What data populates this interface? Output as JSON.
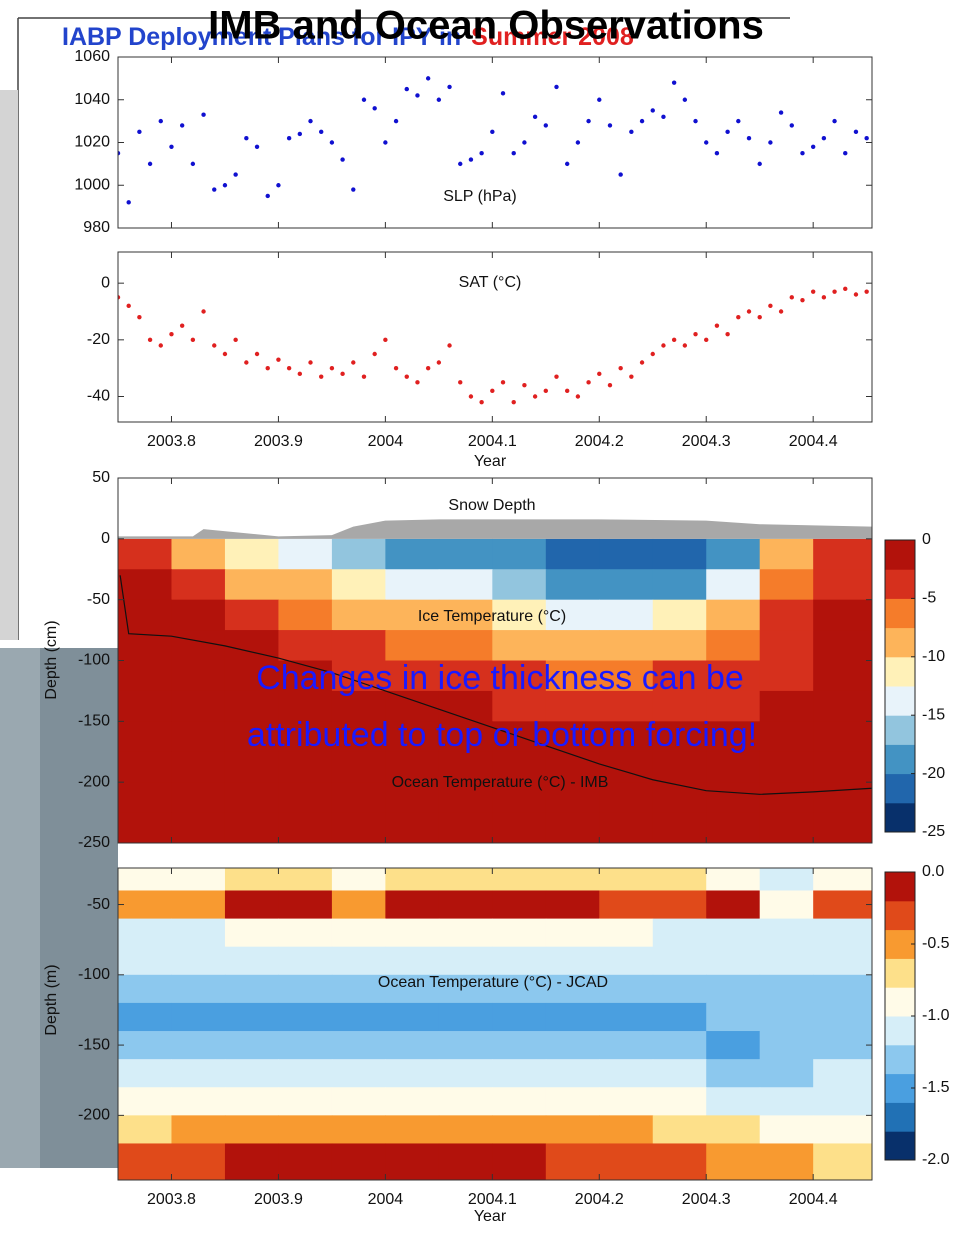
{
  "title": "IMB and Ocean Observations",
  "background_title": [
    "IABP Deployment Plans for IPY in",
    "Summer 2008"
  ],
  "overlay": [
    "Changes in ice thickness can be",
    "attributed to top or bottom forcing!"
  ],
  "chart_data": [
    {
      "type": "scatter",
      "annotations": [
        "SLP (hPa)"
      ],
      "color": "#1010d0",
      "x": [
        2003.75,
        2003.76,
        2003.77,
        2003.78,
        2003.79,
        2003.8,
        2003.81,
        2003.82,
        2003.83,
        2003.84,
        2003.85,
        2003.86,
        2003.87,
        2003.88,
        2003.89,
        2003.9,
        2003.91,
        2003.92,
        2003.93,
        2003.94,
        2003.95,
        2003.96,
        2003.97,
        2003.98,
        2003.99,
        2004.0,
        2004.01,
        2004.02,
        2004.03,
        2004.04,
        2004.05,
        2004.06,
        2004.07,
        2004.08,
        2004.09,
        2004.1,
        2004.11,
        2004.12,
        2004.13,
        2004.14,
        2004.15,
        2004.16,
        2004.17,
        2004.18,
        2004.19,
        2004.2,
        2004.21,
        2004.22,
        2004.23,
        2004.24,
        2004.25,
        2004.26,
        2004.27,
        2004.28,
        2004.29,
        2004.3,
        2004.31,
        2004.32,
        2004.33,
        2004.34,
        2004.35,
        2004.36,
        2004.37,
        2004.38,
        2004.39,
        2004.4,
        2004.41,
        2004.42,
        2004.43,
        2004.44,
        2004.45
      ],
      "values": [
        1015,
        992,
        1025,
        1010,
        1030,
        1018,
        1028,
        1010,
        1033,
        998,
        1000,
        1005,
        1022,
        1018,
        995,
        1000,
        1022,
        1024,
        1030,
        1025,
        1020,
        1012,
        998,
        1040,
        1036,
        1020,
        1030,
        1045,
        1042,
        1050,
        1040,
        1046,
        1010,
        1012,
        1015,
        1025,
        1043,
        1015,
        1020,
        1032,
        1028,
        1046,
        1010,
        1020,
        1030,
        1040,
        1028,
        1005,
        1025,
        1030,
        1035,
        1032,
        1048,
        1040,
        1030,
        1020,
        1015,
        1025,
        1030,
        1022,
        1010,
        1020,
        1034,
        1028,
        1015,
        1018,
        1022,
        1030,
        1015,
        1025,
        1022
      ],
      "xlim": [
        2003.75,
        2004.455
      ],
      "xticks": [
        2003.8,
        2003.9,
        2004,
        2004.1,
        2004.2,
        2004.3,
        2004.4
      ],
      "show_xtick_labels": false,
      "ylim": [
        980,
        1060
      ],
      "yticks": [
        980,
        1000,
        1020,
        1040,
        1060
      ]
    },
    {
      "type": "scatter",
      "annotations": [
        "SAT (°C)"
      ],
      "color": "#e02020",
      "x_label": "Year",
      "x": [
        2003.75,
        2003.76,
        2003.77,
        2003.78,
        2003.79,
        2003.8,
        2003.81,
        2003.82,
        2003.83,
        2003.84,
        2003.85,
        2003.86,
        2003.87,
        2003.88,
        2003.89,
        2003.9,
        2003.91,
        2003.92,
        2003.93,
        2003.94,
        2003.95,
        2003.96,
        2003.97,
        2003.98,
        2003.99,
        2004.0,
        2004.01,
        2004.02,
        2004.03,
        2004.04,
        2004.05,
        2004.06,
        2004.07,
        2004.08,
        2004.09,
        2004.1,
        2004.11,
        2004.12,
        2004.13,
        2004.14,
        2004.15,
        2004.16,
        2004.17,
        2004.18,
        2004.19,
        2004.2,
        2004.21,
        2004.22,
        2004.23,
        2004.24,
        2004.25,
        2004.26,
        2004.27,
        2004.28,
        2004.29,
        2004.3,
        2004.31,
        2004.32,
        2004.33,
        2004.34,
        2004.35,
        2004.36,
        2004.37,
        2004.38,
        2004.39,
        2004.4,
        2004.41,
        2004.42,
        2004.43,
        2004.44,
        2004.45
      ],
      "values": [
        -5,
        -8,
        -12,
        -20,
        -22,
        -18,
        -15,
        -20,
        -10,
        -22,
        -25,
        -20,
        -28,
        -25,
        -30,
        -27,
        -30,
        -32,
        -28,
        -33,
        -30,
        -32,
        -28,
        -33,
        -25,
        -20,
        -30,
        -33,
        -35,
        -30,
        -28,
        -22,
        -35,
        -40,
        -42,
        -38,
        -35,
        -42,
        -36,
        -40,
        -38,
        -33,
        -38,
        -40,
        -35,
        -32,
        -36,
        -30,
        -33,
        -28,
        -25,
        -22,
        -20,
        -22,
        -18,
        -20,
        -15,
        -18,
        -12,
        -10,
        -12,
        -8,
        -10,
        -5,
        -6,
        -3,
        -5,
        -3,
        -2,
        -4,
        -3
      ],
      "xlim": [
        2003.75,
        2004.455
      ],
      "xticks": [
        2003.8,
        2003.9,
        2004,
        2004.1,
        2004.2,
        2004.3,
        2004.4
      ],
      "ylim": [
        -49,
        11
      ],
      "yticks": [
        -40,
        -20,
        0
      ]
    },
    {
      "type": "heatmap",
      "annotations": [
        "Snow Depth",
        "Ice Temperature (°C)",
        "Ocean Temperature (°C) - IMB"
      ],
      "y_label": "Depth (cm)",
      "xlim": [
        2003.75,
        2004.455
      ],
      "xticks": [
        2003.8,
        2003.9,
        2004,
        2004.1,
        2004.2,
        2004.3,
        2004.4
      ],
      "show_xtick_labels": false,
      "ylim": [
        -250,
        50
      ],
      "yticks": [
        50,
        0,
        -50,
        -100,
        -150,
        -200,
        -250
      ],
      "x_edges": [
        2003.75,
        2003.8,
        2003.85,
        2003.9,
        2003.95,
        2004.0,
        2004.05,
        2004.1,
        2004.15,
        2004.2,
        2004.25,
        2004.3,
        2004.35,
        2004.4,
        2004.455
      ],
      "y_edges": [
        0,
        -25,
        -50,
        -75,
        -100,
        -125,
        -150,
        -175,
        -200,
        -225,
        -250
      ],
      "z": [
        [
          -4,
          -8,
          -12,
          -14,
          -16,
          -18,
          -18,
          -20,
          -22,
          -22,
          -22,
          -18,
          -8,
          -4
        ],
        [
          -2,
          -4,
          -8,
          -10,
          -12,
          -14,
          -14,
          -16,
          -20,
          -20,
          -18,
          -14,
          -6,
          -3
        ],
        [
          -2,
          -2,
          -4,
          -6,
          -8,
          -10,
          -10,
          -12,
          -14,
          -14,
          -12,
          -10,
          -5,
          -2
        ],
        [
          -2,
          -2,
          -2,
          -3,
          -5,
          -6,
          -7,
          -8,
          -10,
          -10,
          -8,
          -7,
          -4,
          -2
        ],
        [
          -2,
          -2,
          -2,
          -2,
          -3,
          -4,
          -4,
          -5,
          -6,
          -6,
          -5,
          -5,
          -3,
          -2
        ],
        [
          -2,
          -2,
          -2,
          -2,
          -2,
          -2,
          -2,
          -3,
          -4,
          -4,
          -3,
          -3,
          -2,
          -2
        ],
        [
          -2,
          -2,
          -2,
          -2,
          -2,
          -2,
          -2,
          -2,
          -2,
          -2,
          -2,
          -2,
          -2,
          -2
        ],
        [
          -2,
          -2,
          -2,
          -2,
          -2,
          -2,
          -2,
          -2,
          -2,
          -2,
          -2,
          -2,
          -2,
          -2
        ],
        [
          -2,
          -2,
          -2,
          -2,
          -2,
          -2,
          -2,
          -2,
          -2,
          -2,
          -2,
          -2,
          -2,
          -2
        ],
        [
          -2,
          -2,
          -2,
          -2,
          -2,
          -2,
          -2,
          -2,
          -2,
          -2,
          -2,
          -2,
          -2,
          -2
        ]
      ],
      "clim": [
        -25,
        0
      ],
      "cticks": [
        0,
        -5,
        -10,
        -15,
        -20,
        -25
      ],
      "colors": [
        "#08306b",
        "#2166ac",
        "#4393c3",
        "#92c5de",
        "#e8f3fa",
        "#fff1b8",
        "#fdb45a",
        "#f57c2a",
        "#d6301d",
        "#b2120b"
      ],
      "area": {
        "color": "#a8a8a8",
        "x": [
          2003.75,
          2003.8,
          2003.82,
          2003.83,
          2003.9,
          2003.95,
          2003.97,
          2004.0,
          2004.05,
          2004.1,
          2004.2,
          2004.3,
          2004.35,
          2004.455
        ],
        "values": [
          2,
          2,
          2,
          8,
          2,
          3,
          10,
          15,
          16,
          16,
          16,
          15,
          12,
          10
        ]
      },
      "line": {
        "color": "#111111",
        "x": [
          2003.752,
          2003.76,
          2003.8,
          2003.85,
          2003.9,
          2003.95,
          2004.0,
          2004.05,
          2004.1,
          2004.15,
          2004.2,
          2004.25,
          2004.3,
          2004.35,
          2004.4,
          2004.455
        ],
        "values": [
          -30,
          -78,
          -80,
          -88,
          -98,
          -110,
          -125,
          -140,
          -155,
          -170,
          -185,
          -198,
          -207,
          -210,
          -208,
          -205
        ]
      }
    },
    {
      "type": "heatmap",
      "annotations": [
        "Ocean Temperature (°C) - JCAD"
      ],
      "y_label": "Depth (m)",
      "x_label": "Year",
      "xlim": [
        2003.75,
        2004.455
      ],
      "xticks": [
        2003.8,
        2003.9,
        2004,
        2004.1,
        2004.2,
        2004.3,
        2004.4
      ],
      "ylim": [
        -246,
        -24
      ],
      "yticks": [
        -50,
        -100,
        -150,
        -200
      ],
      "x_edges": [
        2003.75,
        2003.8,
        2003.85,
        2003.9,
        2003.95,
        2004.0,
        2004.05,
        2004.1,
        2004.15,
        2004.2,
        2004.25,
        2004.3,
        2004.35,
        2004.4,
        2004.455
      ],
      "y_edges": [
        -24,
        -40,
        -60,
        -80,
        -100,
        -120,
        -140,
        -160,
        -180,
        -200,
        -220,
        -246
      ],
      "z": [
        [
          -0.9,
          -0.9,
          -0.8,
          -0.8,
          -0.9,
          -0.8,
          -0.7,
          -0.7,
          -0.8,
          -0.8,
          -0.8,
          -0.9,
          -1.1,
          -0.9
        ],
        [
          -0.5,
          -0.5,
          -0.1,
          -0.1,
          -0.5,
          -0.1,
          -0.1,
          -0.1,
          -0.1,
          -0.3,
          -0.3,
          -0.2,
          -0.9,
          -0.4
        ],
        [
          -1.1,
          -1.1,
          -1.0,
          -1.0,
          -1.0,
          -1.0,
          -1.0,
          -1.0,
          -1.0,
          -1.0,
          -1.1,
          -1.1,
          -1.1,
          -1.1
        ],
        [
          -1.2,
          -1.2,
          -1.2,
          -1.2,
          -1.2,
          -1.2,
          -1.2,
          -1.2,
          -1.2,
          -1.2,
          -1.2,
          -1.2,
          -1.2,
          -1.2
        ],
        [
          -1.3,
          -1.3,
          -1.3,
          -1.3,
          -1.3,
          -1.3,
          -1.3,
          -1.3,
          -1.3,
          -1.3,
          -1.3,
          -1.4,
          -1.3,
          -1.3
        ],
        [
          -1.5,
          -1.5,
          -1.5,
          -1.5,
          -1.5,
          -1.5,
          -1.5,
          -1.5,
          -1.5,
          -1.5,
          -1.5,
          -1.4,
          -1.4,
          -1.4
        ],
        [
          -1.4,
          -1.4,
          -1.4,
          -1.4,
          -1.4,
          -1.4,
          -1.4,
          -1.4,
          -1.4,
          -1.4,
          -1.4,
          -1.5,
          -1.4,
          -1.4
        ],
        [
          -1.2,
          -1.2,
          -1.2,
          -1.2,
          -1.2,
          -1.2,
          -1.2,
          -1.2,
          -1.2,
          -1.2,
          -1.2,
          -1.3,
          -1.3,
          -1.2
        ],
        [
          -1.0,
          -0.9,
          -0.9,
          -0.9,
          -0.9,
          -0.9,
          -0.9,
          -0.9,
          -0.9,
          -1.0,
          -1.0,
          -1.1,
          -1.1,
          -1.1
        ],
        [
          -0.7,
          -0.6,
          -0.5,
          -0.5,
          -0.5,
          -0.5,
          -0.5,
          -0.5,
          -0.6,
          -0.6,
          -0.7,
          -0.8,
          -0.9,
          -0.9
        ],
        [
          -0.4,
          -0.3,
          -0.2,
          -0.2,
          -0.2,
          -0.2,
          -0.2,
          -0.2,
          -0.3,
          -0.3,
          -0.4,
          -0.5,
          -0.6,
          -0.7
        ]
      ],
      "clim": [
        -2,
        0
      ],
      "cticks": [
        {
          "value": 0,
          "label": "0.0"
        },
        -0.5,
        {
          "value": -1,
          "label": "-1.0"
        },
        -1.5,
        {
          "value": -2,
          "label": "-2.0"
        }
      ],
      "colors": [
        "#08306b",
        "#2171b5",
        "#4a9fe0",
        "#8cc8ee",
        "#d6eef8",
        "#fffbe8",
        "#fde08a",
        "#f89a30",
        "#e04a1a",
        "#b2120b"
      ]
    }
  ]
}
